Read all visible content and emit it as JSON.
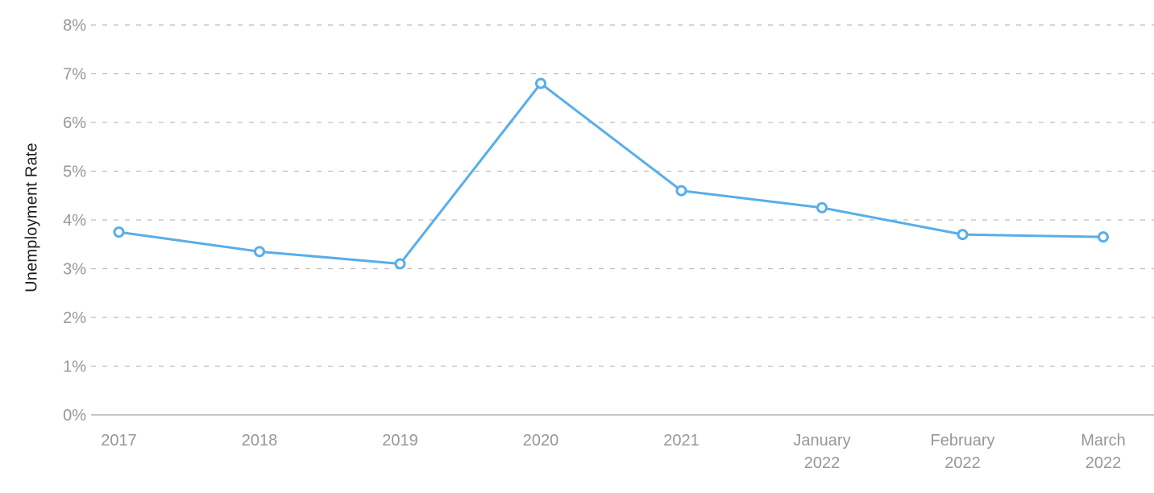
{
  "chart_data": {
    "type": "line",
    "title": "",
    "xlabel": "",
    "ylabel": "Unemployment Rate",
    "categories": [
      [
        "2017"
      ],
      [
        "2018"
      ],
      [
        "2019"
      ],
      [
        "2020"
      ],
      [
        "2021"
      ],
      [
        "January",
        "2022"
      ],
      [
        "February",
        "2022"
      ],
      [
        "March",
        "2022"
      ]
    ],
    "values": [
      3.75,
      3.35,
      3.1,
      6.8,
      4.6,
      4.25,
      3.7,
      3.65
    ],
    "ylim": [
      0,
      8
    ],
    "ytick_step": 1,
    "ytick_labels": [
      "0%",
      "1%",
      "2%",
      "3%",
      "4%",
      "5%",
      "6%",
      "7%",
      "8%"
    ],
    "ytick_suffix": "%",
    "grid": "horizontal-dashed",
    "legend": "none",
    "marker": "open-circle",
    "colors": {
      "line": "#58aeea",
      "marker_fill": "#ffffff",
      "grid": "#bdbdbd",
      "axis": "#b3b3b3",
      "tick_text": "#97979c",
      "axis_title_text": "#1d1d1d"
    }
  }
}
